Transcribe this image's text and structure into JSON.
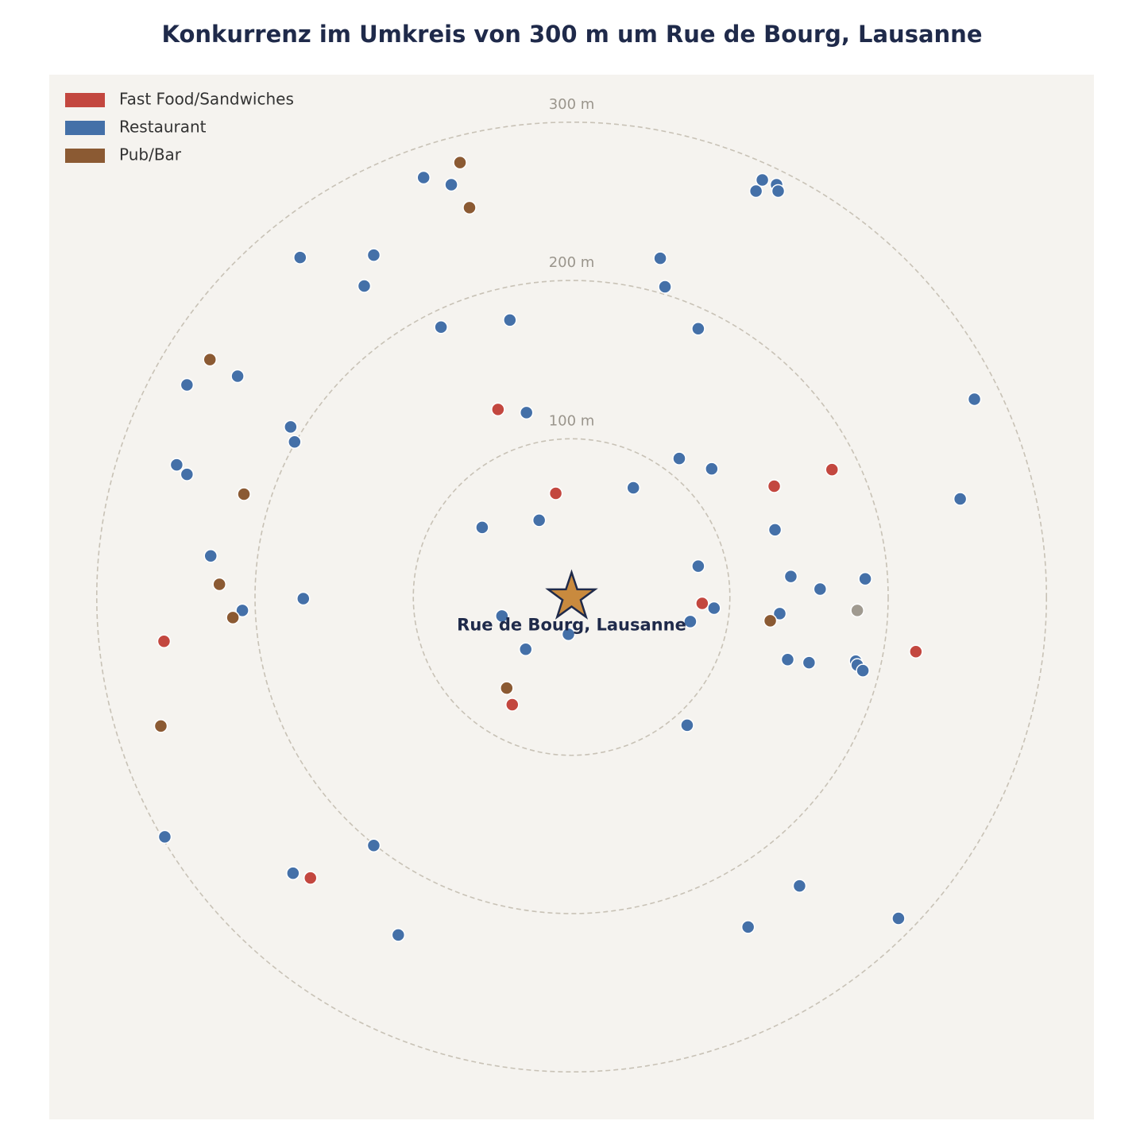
{
  "chart_data": {
    "type": "scatter",
    "title": "Konkurrenz im Umkreis von 300 m um Rue de Bourg, Lausanne",
    "xlim": [
      -330,
      330
    ],
    "ylim": [
      -330,
      330
    ],
    "rings": [
      {
        "value": 100,
        "label": "100 m"
      },
      {
        "value": 200,
        "label": "200 m"
      },
      {
        "value": 300,
        "label": "300 m"
      }
    ],
    "legend": "upper left",
    "center": {
      "label": "Rue de Bourg, Lausanne",
      "x": 0,
      "y": 0,
      "color": "#c98a3e"
    },
    "series": [
      {
        "name": "Fast Food/Sandwiches",
        "color": "#c3473f",
        "x": [
          -46.5,
          -10,
          128,
          164.5,
          82.5,
          217.5,
          -257.5,
          -37.5,
          -165
        ],
        "values": [
          118.5,
          65.5,
          70,
          80.5,
          -4,
          -34.5,
          -28,
          -68,
          -177.5
        ]
      },
      {
        "name": "Restaurant",
        "color": "#4470a8",
        "x": [
          -93.5,
          -76,
          120.5,
          129.5,
          116.5,
          130.5,
          -171.5,
          -125,
          -131,
          56,
          59,
          -82.5,
          -39,
          80,
          -211,
          -243,
          254.5,
          -28.5,
          -177.5,
          -175,
          -249.5,
          -243,
          68,
          88.5,
          39,
          245.5,
          -20.5,
          -56.5,
          128.5,
          -228,
          80,
          138.5,
          185.5,
          157,
          -169.5,
          -208,
          90,
          131.5,
          -44,
          75,
          -2,
          -29,
          136.5,
          150,
          179.5,
          180.5,
          184,
          73,
          -257,
          -125,
          -176,
          144,
          111.5,
          206.5,
          -109.5
        ],
        "values": [
          265,
          260.5,
          263.5,
          260.5,
          256.5,
          256.5,
          214.5,
          216,
          196.5,
          214,
          196,
          170.5,
          175,
          169.5,
          139.5,
          134,
          125,
          116.5,
          107.5,
          98,
          83.5,
          77.5,
          87.5,
          81,
          69,
          62,
          48.5,
          44,
          42.5,
          26,
          19.5,
          13,
          11.5,
          5,
          -1,
          -8.5,
          -7,
          -10.5,
          -12,
          -15.5,
          -23.5,
          -33,
          -39.5,
          -41.5,
          -40.5,
          -43,
          -46.5,
          -81,
          -151.5,
          -157,
          -174.5,
          -182.5,
          -208.5,
          -203,
          -213.5
        ]
      },
      {
        "name": "Pub/Bar",
        "color": "#8b5a33",
        "x": [
          -70.5,
          -64.5,
          -228.5,
          -207,
          -222.5,
          -214,
          125.5,
          -41,
          -259.5
        ],
        "values": [
          274.5,
          246,
          150,
          65,
          8,
          -13,
          -15,
          -57.5,
          -81.5
        ]
      },
      {
        "name": null,
        "color": "#a09a90",
        "x": [
          180.5
        ],
        "values": [
          -8.5
        ]
      }
    ]
  }
}
